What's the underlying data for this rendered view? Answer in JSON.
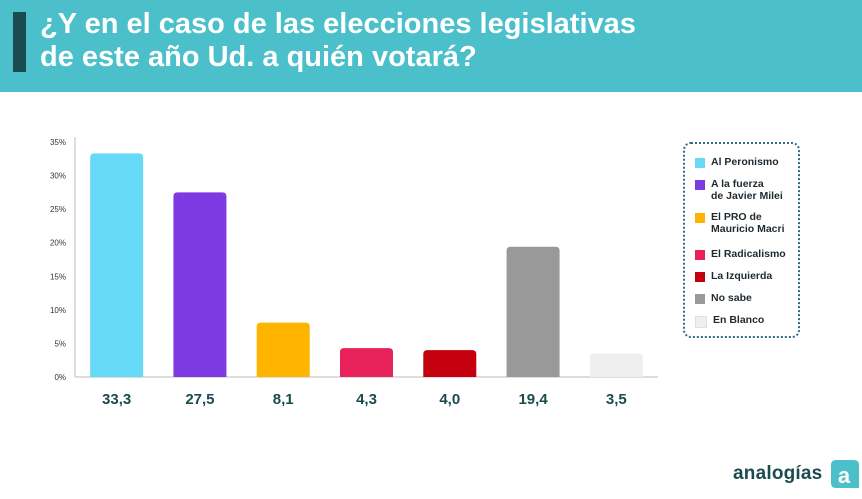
{
  "header": {
    "title_line1": "¿Y en el caso de las elecciones legislativas",
    "title_line2": "de este año Ud. a quién votará?"
  },
  "chart_data": {
    "type": "bar",
    "categories": [
      "Al Peronismo",
      "A la fuerza de Javier Milei",
      "El PRO de Mauricio Macri",
      "El Radicalismo",
      "La Izquierda",
      "No sabe",
      "En Blanco"
    ],
    "values": [
      33.3,
      27.5,
      8.1,
      4.3,
      4.0,
      19.4,
      3.5
    ],
    "value_labels": [
      "33,3",
      "27,5",
      "8,1",
      "4,3",
      "4,0",
      "19,4",
      "3,5"
    ],
    "colors": [
      "#66d9f7",
      "#7e3ae2",
      "#ffb400",
      "#e8215a",
      "#c4000f",
      "#999999",
      "#f0eff0"
    ],
    "yticks": [
      "0%",
      "5%",
      "10%",
      "15%",
      "20%",
      "25%",
      "30%",
      "35%"
    ],
    "ylim": [
      0,
      35
    ],
    "title": "",
    "xlabel": "",
    "ylabel": "",
    "grid": false,
    "legend_position": "right"
  },
  "legend": {
    "items": [
      {
        "label_line1": "Al Peronismo",
        "label_line2": "",
        "color": "#66d9f7"
      },
      {
        "label_line1": "A la fuerza",
        "label_line2": "de Javier Milei",
        "color": "#7e3ae2"
      },
      {
        "label_line1": "El PRO de",
        "label_line2": "Mauricio Macri",
        "color": "#ffb400"
      },
      {
        "label_line1": "El Radicalismo",
        "label_line2": "",
        "color": "#e8215a"
      },
      {
        "label_line1": "La Izquierda",
        "label_line2": "",
        "color": "#c4000f"
      },
      {
        "label_line1": "No sabe",
        "label_line2": "",
        "color": "#999999"
      },
      {
        "label_line1": "En Blanco",
        "label_line2": "",
        "color": "#f0eff0"
      }
    ]
  },
  "brand": {
    "name": "analogías",
    "logo_letter": "a"
  }
}
